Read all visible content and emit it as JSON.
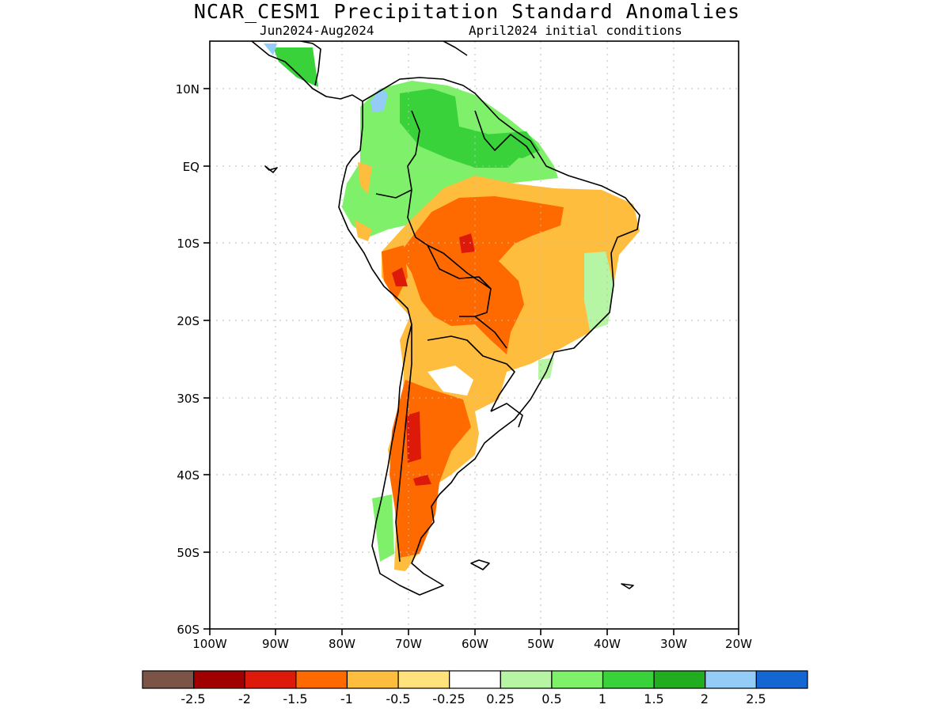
{
  "header": {
    "title": "NCAR_CESM1 Precipitation Standard Anomalies",
    "period": "Jun2024-Aug2024",
    "init": "April2024 initial conditions"
  },
  "map": {
    "lat_labels": [
      "10N",
      "EQ",
      "10S",
      "20S",
      "30S",
      "40S",
      "50S",
      "60S"
    ],
    "lon_labels": [
      "100W",
      "90W",
      "80W",
      "70W",
      "60W",
      "50W",
      "40W",
      "30W",
      "20W"
    ]
  },
  "colorbar": {
    "colors": [
      "#7b5447",
      "#a00000",
      "#dd1a0a",
      "#ff6a00",
      "#ffbd3e",
      "#ffe27b",
      "#ffffff",
      "#b6f5a4",
      "#7ef06a",
      "#3ad23a",
      "#20ad20",
      "#93cdf7",
      "#1466d2"
    ],
    "labels": [
      "-2.5",
      "-2",
      "-1.5",
      "-1",
      "-0.5",
      "-0.25",
      "0.25",
      "0.5",
      "1",
      "1.5",
      "2",
      "2.5"
    ]
  }
}
